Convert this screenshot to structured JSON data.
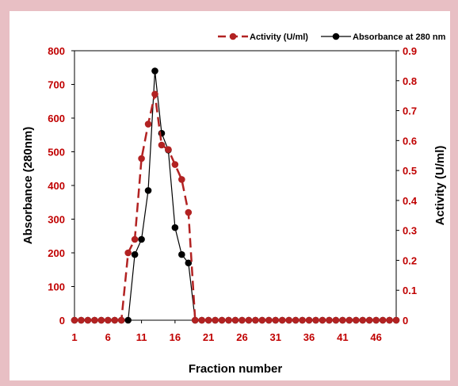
{
  "colors": {
    "background": "#e8bfc4",
    "activity": "#b22222",
    "absorbance": "#000000",
    "left_axis_ticks": "#c00000",
    "right_axis_ticks": "#c00000",
    "x_axis_ticks": "#c00000"
  },
  "chart_data": {
    "type": "line",
    "title": "",
    "xlabel": "Fraction number",
    "ylabel_left": "Absorbance (280nm)",
    "ylabel_right": "Activity (U/ml)",
    "x": [
      1,
      2,
      3,
      4,
      5,
      6,
      7,
      8,
      9,
      10,
      11,
      12,
      13,
      14,
      15,
      16,
      17,
      18,
      19,
      20,
      21,
      22,
      23,
      24,
      25,
      26,
      27,
      28,
      29,
      30,
      31,
      32,
      33,
      34,
      35,
      36,
      37,
      38,
      39,
      40,
      41,
      42,
      43,
      44,
      45,
      46,
      47,
      48,
      49
    ],
    "x_ticks": [
      1,
      6,
      11,
      16,
      21,
      26,
      31,
      36,
      41,
      46
    ],
    "x_tick_labels": [
      "1",
      "6",
      "11",
      "16",
      "21",
      "26",
      "31",
      "36",
      "41",
      "46"
    ],
    "xlim": [
      1,
      49
    ],
    "ylim_left": [
      0,
      800
    ],
    "y_ticks_left": [
      "0",
      "100",
      "200",
      "300",
      "400",
      "500",
      "600",
      "700",
      "800"
    ],
    "ylim_right": [
      0,
      0.9
    ],
    "y_ticks_right": [
      "0",
      "0.1",
      "0.2",
      "0.3",
      "0.4",
      "0.5",
      "0.6",
      "0.7",
      "0.8",
      "0.9"
    ],
    "legend_position": "top-right",
    "series": [
      {
        "name": "Activity (U/ml)",
        "axis": "right",
        "style": "dashed",
        "color": "#b22222",
        "values": [
          0,
          0,
          0,
          0,
          0,
          0,
          0,
          0,
          0.225,
          0.27,
          0.54,
          0.655,
          0.755,
          0.585,
          0.57,
          0.52,
          0.47,
          0.36,
          0,
          0,
          0,
          0,
          0,
          0,
          0,
          0,
          0,
          0,
          0,
          0,
          0,
          0,
          0,
          0,
          0,
          0,
          0,
          0,
          0,
          0,
          0,
          0,
          0,
          0,
          0,
          0,
          0,
          0,
          0
        ]
      },
      {
        "name": "Absorbance at 280 nm",
        "axis": "left",
        "style": "solid",
        "color": "#000000",
        "values": [
          0,
          0,
          0,
          0,
          0,
          0,
          0,
          0,
          0,
          195,
          240,
          385,
          740,
          555,
          505,
          275,
          195,
          170,
          0,
          0,
          0,
          0,
          0,
          0,
          0,
          0,
          0,
          0,
          0,
          0,
          0,
          0,
          0,
          0,
          0,
          0,
          0,
          0,
          0,
          0,
          0,
          0,
          0,
          0,
          0,
          0,
          0,
          0,
          0
        ]
      }
    ]
  }
}
